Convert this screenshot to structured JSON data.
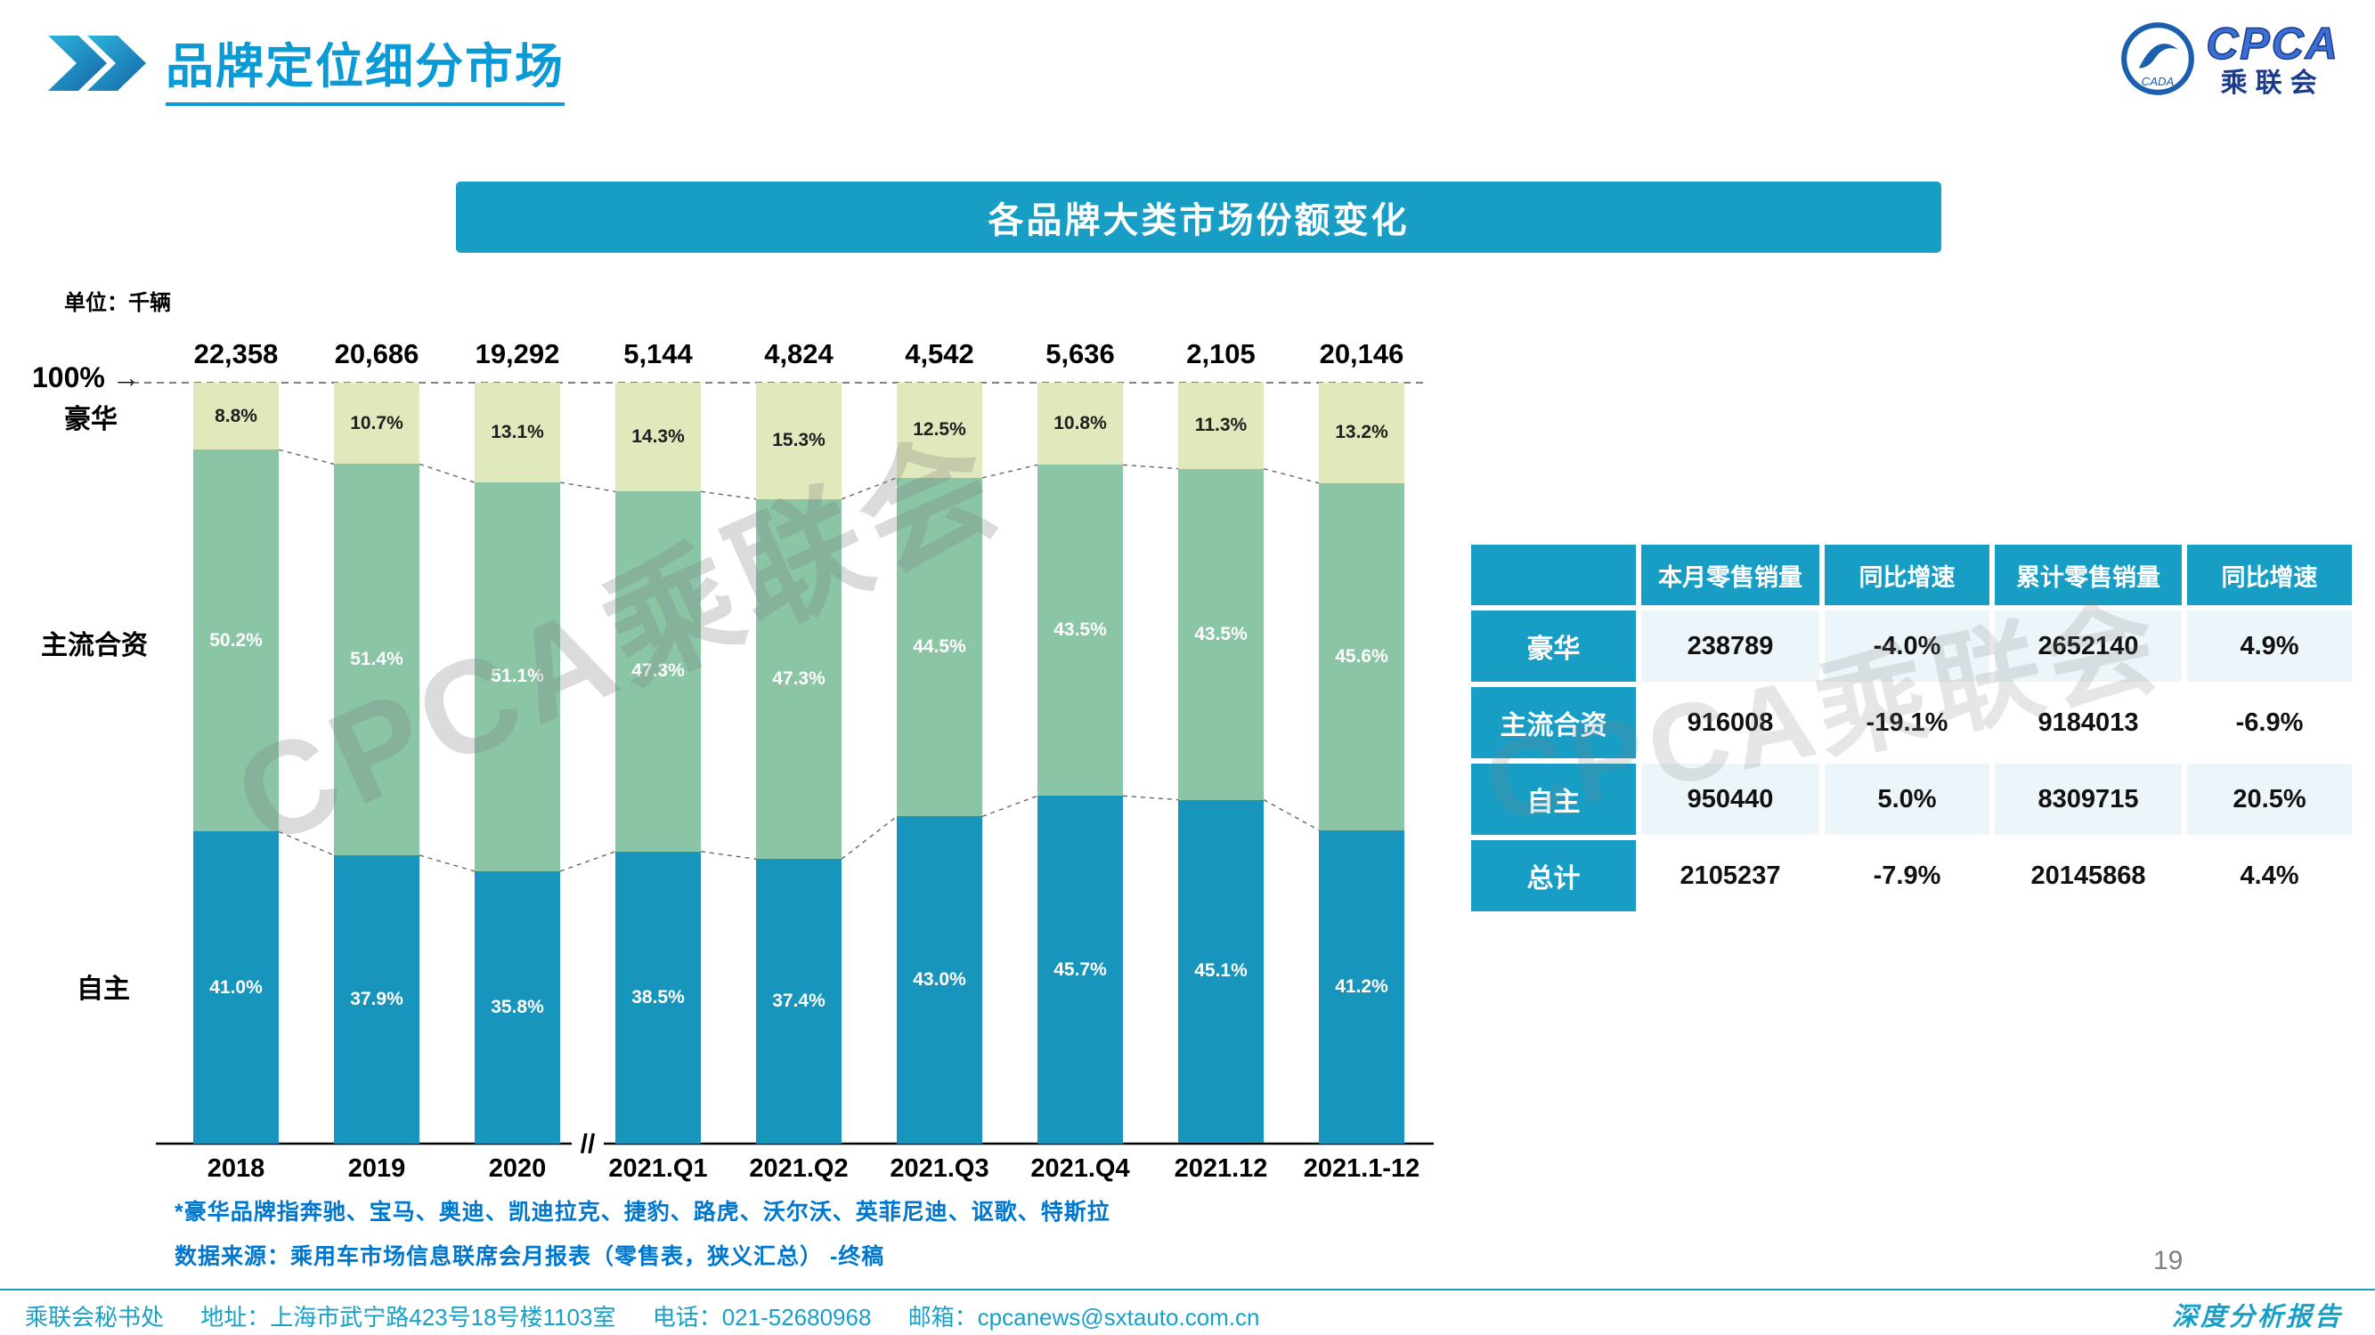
{
  "page": {
    "title": "品牌定位细分市场",
    "page_number": "19",
    "report_label": "深度分析报告",
    "watermark": "CPCA乘联会"
  },
  "logo": {
    "name": "CPCA",
    "subtitle": "乘联会",
    "emblem_text": "CADA"
  },
  "banner": {
    "title": "各品牌大类市场份额变化"
  },
  "chart_meta": {
    "unit_label": "单位：千辆",
    "axis_top_label": "100%",
    "axis_top_arrow": "→",
    "axis_break": "//",
    "segment_labels": {
      "luxury": "豪华",
      "mainstream_jv": "主流合资",
      "domestic": "自主"
    }
  },
  "chart_data": {
    "type": "bar",
    "stacked": true,
    "title": "各品牌大类市场份额变化",
    "unit": "千辆",
    "ylim": [
      0,
      100
    ],
    "grid": false,
    "legend_position": "left-axis",
    "categories": [
      "2018",
      "2019",
      "2020",
      "2021.Q1",
      "2021.Q2",
      "2021.Q3",
      "2021.Q4",
      "2021.12",
      "2021.1-12"
    ],
    "totals": [
      22358,
      20686,
      19292,
      5144,
      4824,
      4542,
      5636,
      2105,
      20146
    ],
    "totals_display": [
      "22,358",
      "20,686",
      "19,292",
      "5,144",
      "4,824",
      "4,542",
      "5,636",
      "2,105",
      "20,146"
    ],
    "series": [
      {
        "name": "自主",
        "color": "#1795bc",
        "label_color": "#ffffff",
        "values": [
          41.0,
          37.9,
          35.8,
          38.5,
          37.4,
          43.0,
          45.7,
          45.1,
          41.2
        ]
      },
      {
        "name": "主流合资",
        "color": "#8ac5a5",
        "label_color": "#ffffff",
        "values": [
          50.2,
          51.4,
          51.1,
          47.3,
          47.3,
          44.5,
          43.5,
          43.5,
          45.6
        ]
      },
      {
        "name": "豪华",
        "color": "#dfe9bc",
        "label_color": "#1f1f1f",
        "values": [
          8.8,
          10.7,
          13.1,
          14.3,
          15.3,
          12.5,
          10.8,
          11.3,
          13.2
        ]
      }
    ]
  },
  "table": {
    "headers": [
      "",
      "本月零售销量",
      "同比增速",
      "累计零售销量",
      "同比增速"
    ],
    "rows": [
      {
        "label": "豪华",
        "values": [
          "238789",
          "-4.0%",
          "2652140",
          "4.9%"
        ]
      },
      {
        "label": "主流合资",
        "values": [
          "916008",
          "-19.1%",
          "9184013",
          "-6.9%"
        ]
      },
      {
        "label": "自主",
        "values": [
          "950440",
          "5.0%",
          "8309715",
          "20.5%"
        ]
      },
      {
        "label": "总计",
        "values": [
          "2105237",
          "-7.9%",
          "20145868",
          "4.4%"
        ]
      }
    ]
  },
  "footnotes": {
    "note1": "*豪华品牌指奔驰、宝马、奥迪、凯迪拉克、捷豹、路虎、沃尔沃、英菲尼迪、讴歌、特斯拉",
    "note2": "数据来源：乘用车市场信息联席会月报表（零售表，狭义汇总） -终稿"
  },
  "footer": {
    "secretariat": "乘联会秘书处",
    "address": "地址：上海市武宁路423号18号楼1103室",
    "phone": "电话：021-52680968",
    "email": "邮箱：cpcanews@sxtauto.com.cn"
  },
  "colors": {
    "accent_teal": "#189dc5",
    "title_blue": "#0a9bd7",
    "footnote_blue": "#0077cf",
    "bar_domestic": "#1795bc",
    "bar_mainstream": "#8ac5a5",
    "bar_luxury": "#dfe9bc"
  }
}
